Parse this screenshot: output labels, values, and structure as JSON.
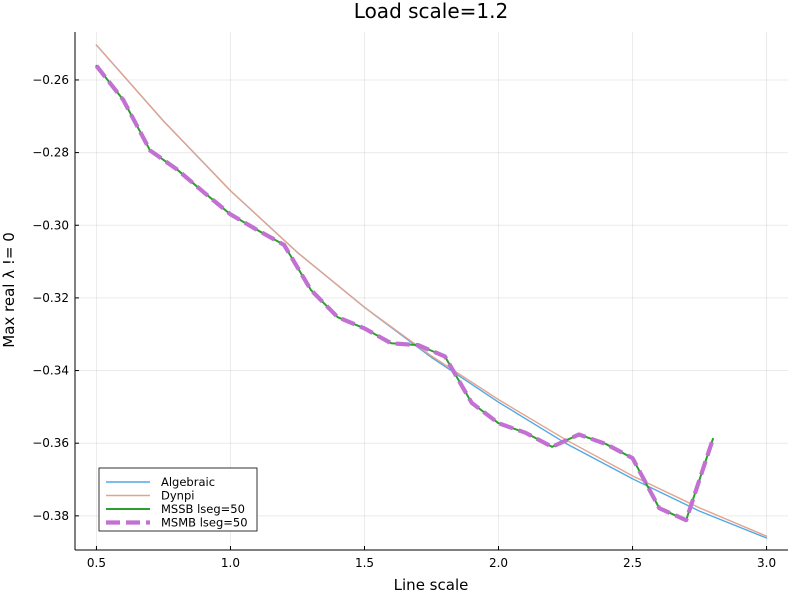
{
  "chart_data": {
    "type": "line",
    "title": "Load scale=1.2",
    "xlabel": "Line scale",
    "ylabel": "Max real λ != 0",
    "xlim": [
      0.42,
      3.08
    ],
    "ylim": [
      -0.3894,
      -0.2468
    ],
    "xticks": [
      0.5,
      1.0,
      1.5,
      2.0,
      2.5,
      3.0
    ],
    "xtick_labels": [
      "0.5",
      "1.0",
      "1.5",
      "2.0",
      "2.5",
      "3.0"
    ],
    "yticks": [
      -0.38,
      -0.36,
      -0.34,
      -0.32,
      -0.3,
      -0.28,
      -0.26
    ],
    "ytick_labels": [
      "−0.38",
      "−0.36",
      "−0.34",
      "−0.32",
      "−0.30",
      "−0.28",
      "−0.26"
    ],
    "grid": true,
    "legend_position": "bottom-left",
    "series": [
      {
        "name": "Algebraic",
        "color": "#4fa9e6",
        "style": "solid",
        "x": [
          0.5,
          0.75,
          1.0,
          1.25,
          1.5,
          1.75,
          2.0,
          2.25,
          2.5,
          2.75,
          3.0
        ],
        "y": [
          -0.2504,
          -0.2713,
          -0.2905,
          -0.3075,
          -0.3226,
          -0.3364,
          -0.3487,
          -0.36,
          -0.3698,
          -0.3787,
          -0.3861
        ]
      },
      {
        "name": "Dynpi",
        "color": "#e3a38e",
        "style": "solid",
        "x": [
          0.5,
          0.75,
          1.0,
          1.25,
          1.5,
          1.75,
          2.0,
          2.25,
          2.5,
          2.75,
          3.0
        ],
        "y": [
          -0.2504,
          -0.2713,
          -0.2905,
          -0.3075,
          -0.3226,
          -0.336,
          -0.348,
          -0.359,
          -0.369,
          -0.3778,
          -0.3856
        ]
      },
      {
        "name": "MSSB lseg=50",
        "color": "#2ca02c",
        "style": "solid",
        "x": [
          0.5,
          0.6,
          0.7,
          0.8,
          0.9,
          1.0,
          1.1,
          1.2,
          1.3,
          1.4,
          1.5,
          1.6,
          1.7,
          1.8,
          1.9,
          2.0,
          2.1,
          2.2,
          2.3,
          2.4,
          2.5,
          2.6,
          2.7,
          2.8
        ],
        "y": [
          -0.2561,
          -0.2655,
          -0.2794,
          -0.2846,
          -0.2909,
          -0.297,
          -0.3013,
          -0.3054,
          -0.3178,
          -0.3253,
          -0.3284,
          -0.3325,
          -0.333,
          -0.3361,
          -0.3489,
          -0.3545,
          -0.3571,
          -0.361,
          -0.3576,
          -0.3602,
          -0.3641,
          -0.3779,
          -0.3812,
          -0.3588
        ]
      },
      {
        "name": "MSMB lseg=50",
        "color": "#c271d2",
        "style": "dashed",
        "x": [
          0.5,
          0.6,
          0.7,
          0.8,
          0.9,
          1.0,
          1.1,
          1.2,
          1.3,
          1.4,
          1.5,
          1.6,
          1.7,
          1.8,
          1.9,
          2.0,
          2.1,
          2.2,
          2.3,
          2.4,
          2.5,
          2.6,
          2.7,
          2.8
        ],
        "y": [
          -0.2561,
          -0.2655,
          -0.2794,
          -0.2846,
          -0.2909,
          -0.297,
          -0.3013,
          -0.3054,
          -0.3178,
          -0.3253,
          -0.3284,
          -0.3325,
          -0.333,
          -0.3361,
          -0.3489,
          -0.3545,
          -0.3571,
          -0.361,
          -0.3576,
          -0.3602,
          -0.3641,
          -0.3779,
          -0.3812,
          -0.3588
        ]
      }
    ]
  }
}
